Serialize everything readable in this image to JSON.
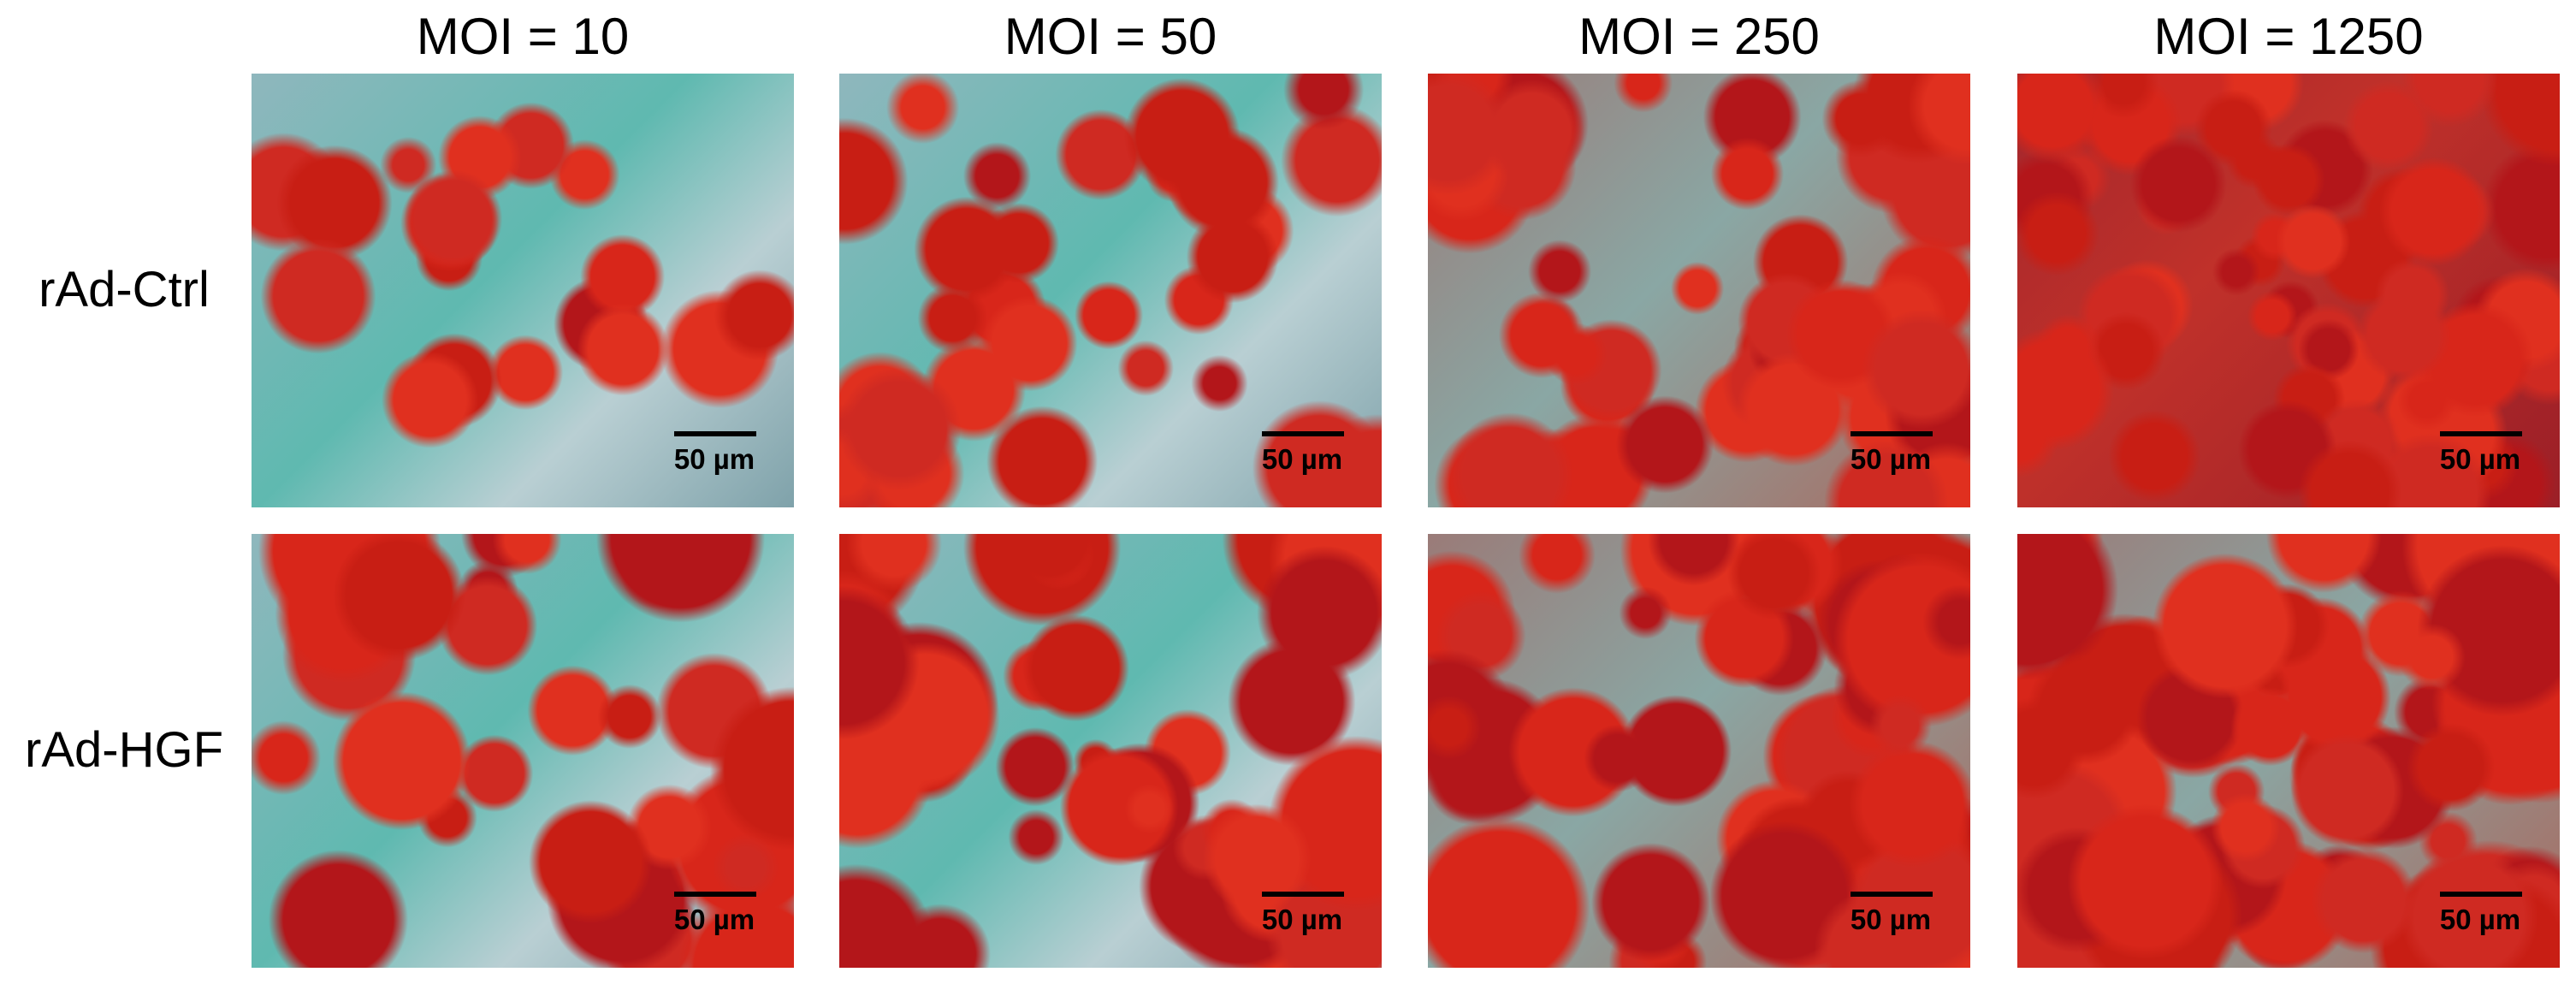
{
  "columns": [
    "MOI = 10",
    "MOI = 50",
    "MOI = 250",
    "MOI = 1250"
  ],
  "rows": [
    {
      "label": "rAd-Ctrl",
      "panels": [
        {
          "scale_bar": "50 µm"
        },
        {
          "scale_bar": "50 µm"
        },
        {
          "scale_bar": "50 µm"
        },
        {
          "scale_bar": "50 µm"
        }
      ]
    },
    {
      "label": "rAd-HGF",
      "panels": [
        {
          "scale_bar": "50 µm"
        },
        {
          "scale_bar": "50 µm"
        },
        {
          "scale_bar": "50 µm"
        },
        {
          "scale_bar": "50 µm"
        }
      ]
    }
  ]
}
